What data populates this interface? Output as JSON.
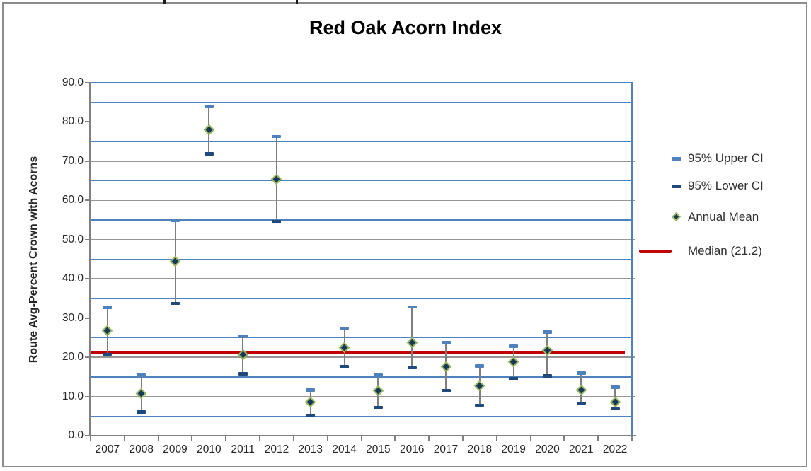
{
  "figure": {
    "title": "Red Oak Acorn Index",
    "y_axis_title": "Route Avg-Percent Crown with Acorns"
  },
  "legend": {
    "items": [
      {
        "id": "upper-ci",
        "label": "95% Upper CI",
        "marker": "dash",
        "color": "#4F81BD"
      },
      {
        "id": "lower-ci",
        "label": "95% Lower CI",
        "marker": "dash",
        "color": "#1F497D"
      },
      {
        "id": "annual-mean",
        "label": "Annual Mean",
        "marker": "diamond",
        "color": "#17375E",
        "border_color": "#9BBB59"
      },
      {
        "id": "median",
        "label": "Median (21.2)",
        "marker": "line",
        "color": "#C00000"
      }
    ]
  },
  "chart_data": {
    "type": "scatter",
    "title": "Red Oak Acorn Index",
    "xlabel": "",
    "ylabel": "Route Avg-Percent Crown with Acorns",
    "categories": [
      "2007",
      "2008",
      "2009",
      "2010",
      "2011",
      "2012",
      "2013",
      "2014",
      "2015",
      "2016",
      "2017",
      "2018",
      "2019",
      "2020",
      "2021",
      "2022"
    ],
    "series": [
      {
        "name": "95% Upper CI",
        "values": [
          32.8,
          15.5,
          55.0,
          84.0,
          25.5,
          76.3,
          11.7,
          27.5,
          15.5,
          32.9,
          23.8,
          17.8,
          22.9,
          26.5,
          16.0,
          12.4
        ]
      },
      {
        "name": "95% Lower CI",
        "values": [
          20.8,
          6.1,
          33.8,
          71.9,
          15.8,
          54.6,
          5.2,
          17.6,
          7.3,
          17.4,
          11.5,
          7.8,
          14.6,
          15.3,
          8.3,
          6.9
        ]
      },
      {
        "name": "Annual Mean",
        "values": [
          26.8,
          10.8,
          44.4,
          78.0,
          20.7,
          65.3,
          8.5,
          22.5,
          11.4,
          23.7,
          17.6,
          12.8,
          18.9,
          21.8,
          11.6,
          8.6
        ]
      }
    ],
    "median": {
      "label": "Median (21.2)",
      "value": 21.2
    },
    "ylim": [
      0,
      90
    ],
    "y_tick_step": 10,
    "y_minor_step": 5,
    "grid": true,
    "legend_position": "right",
    "colors": {
      "upper_ci": "#4F81BD",
      "lower_ci": "#1F497D",
      "mean_fill": "#17375E",
      "mean_outline": "#9BBB59",
      "median": "#C00000",
      "minor_grid": "#4F81BD",
      "major_grid": "#969696",
      "axis": "#808080",
      "error_bar": "#7F7F7F",
      "label_text": "#262626"
    }
  }
}
